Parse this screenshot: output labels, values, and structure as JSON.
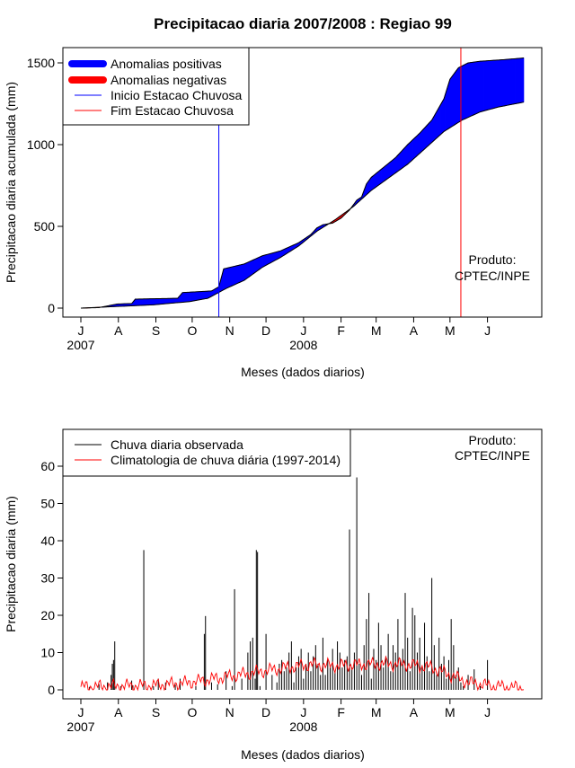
{
  "chart_data": [
    {
      "type": "area",
      "title": "Precipitacao diaria 2007/2008 : Regiao 99",
      "xlabel": "Meses (dados diarios)",
      "ylabel": "Precipitacao diaria acumulada (mm)",
      "ylim": [
        0,
        1550
      ],
      "yticks": [
        0,
        500,
        1000,
        1500
      ],
      "month_ticks": [
        "J",
        "A",
        "S",
        "O",
        "N",
        "D",
        "J",
        "F",
        "M",
        "A",
        "M",
        "J"
      ],
      "year_labels": [
        "2007",
        "2008"
      ],
      "legend": {
        "placement": "top-left",
        "entries": [
          "Anomalias positivas",
          "Anomalias negativas",
          "Inicio Estacao Chuvosa",
          "Fim Estacao Chuvosa"
        ]
      },
      "annotation": [
        "Produto:",
        "CPTEC/INPE"
      ],
      "colors": {
        "positive": "#0000ff",
        "negative": "#ff0000",
        "onset": "#0000ff",
        "end": "#ff0000"
      },
      "onset_day": 114,
      "end_day": 314,
      "observed_knots": [
        [
          0,
          0
        ],
        [
          15,
          3
        ],
        [
          30,
          25
        ],
        [
          42,
          28
        ],
        [
          45,
          55
        ],
        [
          80,
          60
        ],
        [
          84,
          95
        ],
        [
          108,
          105
        ],
        [
          114,
          130
        ],
        [
          118,
          240
        ],
        [
          135,
          270
        ],
        [
          150,
          320
        ],
        [
          165,
          350
        ],
        [
          180,
          400
        ],
        [
          190,
          450
        ],
        [
          195,
          490
        ],
        [
          200,
          510
        ],
        [
          208,
          520
        ],
        [
          215,
          550
        ],
        [
          222,
          600
        ],
        [
          228,
          660
        ],
        [
          232,
          680
        ],
        [
          236,
          760
        ],
        [
          240,
          800
        ],
        [
          250,
          860
        ],
        [
          260,
          920
        ],
        [
          270,
          1000
        ],
        [
          280,
          1070
        ],
        [
          290,
          1150
        ],
        [
          300,
          1280
        ],
        [
          305,
          1400
        ],
        [
          312,
          1470
        ],
        [
          320,
          1500
        ],
        [
          330,
          1510
        ],
        [
          350,
          1520
        ],
        [
          366,
          1530
        ]
      ],
      "climatology_knots": [
        [
          0,
          0
        ],
        [
          30,
          10
        ],
        [
          60,
          20
        ],
        [
          90,
          40
        ],
        [
          105,
          60
        ],
        [
          120,
          120
        ],
        [
          135,
          170
        ],
        [
          150,
          250
        ],
        [
          165,
          310
        ],
        [
          180,
          380
        ],
        [
          195,
          470
        ],
        [
          210,
          540
        ],
        [
          225,
          620
        ],
        [
          240,
          720
        ],
        [
          255,
          800
        ],
        [
          270,
          880
        ],
        [
          285,
          980
        ],
        [
          300,
          1080
        ],
        [
          315,
          1150
        ],
        [
          330,
          1200
        ],
        [
          345,
          1230
        ],
        [
          366,
          1260
        ]
      ]
    },
    {
      "type": "bar",
      "xlabel": "Meses (dados diarios)",
      "ylabel": "Precipitacao diaria (mm)",
      "ylim": [
        0,
        70
      ],
      "yticks": [
        0,
        10,
        20,
        30,
        40,
        50,
        60
      ],
      "month_ticks": [
        "J",
        "A",
        "S",
        "O",
        "N",
        "D",
        "J",
        "F",
        "M",
        "A",
        "M",
        "J"
      ],
      "year_labels": [
        "2007",
        "2008"
      ],
      "legend": {
        "placement": "top-left",
        "entries": [
          "Chuva diaria observada",
          "Climatologia de chuva diária (1997-2014)"
        ]
      },
      "annotation": [
        "Produto:",
        "CPTEC/INPE"
      ],
      "colors": {
        "observed": "#000000",
        "climatology": "#ff0000"
      },
      "observed_peaks": [
        [
          7,
          0.8
        ],
        [
          15,
          1.5
        ],
        [
          22,
          2
        ],
        [
          25,
          4
        ],
        [
          26,
          7
        ],
        [
          27,
          8
        ],
        [
          28,
          13
        ],
        [
          33,
          1
        ],
        [
          42,
          2.5
        ],
        [
          43,
          1.2
        ],
        [
          52,
          37.5
        ],
        [
          60,
          1
        ],
        [
          64,
          3
        ],
        [
          70,
          2
        ],
        [
          78,
          1.5
        ],
        [
          82,
          3
        ],
        [
          95,
          1
        ],
        [
          102,
          15
        ],
        [
          103,
          19.8
        ],
        [
          108,
          2
        ],
        [
          113,
          1.5
        ],
        [
          120,
          5
        ],
        [
          125,
          1
        ],
        [
          127,
          27
        ],
        [
          133,
          3
        ],
        [
          138,
          10
        ],
        [
          140,
          13
        ],
        [
          142,
          14
        ],
        [
          144,
          3
        ],
        [
          145,
          37.5
        ],
        [
          146,
          37
        ],
        [
          148,
          1
        ],
        [
          153,
          15
        ],
        [
          158,
          4
        ],
        [
          162,
          2
        ],
        [
          164,
          7
        ],
        [
          166,
          8
        ],
        [
          168,
          5
        ],
        [
          170,
          6
        ],
        [
          172,
          10
        ],
        [
          174,
          13
        ],
        [
          176,
          2
        ],
        [
          178,
          6
        ],
        [
          180,
          9
        ],
        [
          182,
          11
        ],
        [
          184,
          3
        ],
        [
          186,
          7
        ],
        [
          188,
          10
        ],
        [
          190,
          5
        ],
        [
          192,
          9
        ],
        [
          194,
          12
        ],
        [
          196,
          7
        ],
        [
          198,
          4
        ],
        [
          200,
          14
        ],
        [
          202,
          4
        ],
        [
          204,
          8
        ],
        [
          206,
          6
        ],
        [
          208,
          11
        ],
        [
          210,
          5
        ],
        [
          212,
          13
        ],
        [
          214,
          10
        ],
        [
          216,
          6
        ],
        [
          218,
          8
        ],
        [
          220,
          9
        ],
        [
          222,
          43
        ],
        [
          224,
          6
        ],
        [
          226,
          10
        ],
        [
          228,
          57
        ],
        [
          230,
          7
        ],
        [
          232,
          4
        ],
        [
          234,
          12
        ],
        [
          236,
          19
        ],
        [
          238,
          26
        ],
        [
          240,
          3
        ],
        [
          242,
          11
        ],
        [
          244,
          8
        ],
        [
          246,
          18
        ],
        [
          248,
          12
        ],
        [
          250,
          6
        ],
        [
          252,
          9
        ],
        [
          254,
          15
        ],
        [
          256,
          5
        ],
        [
          258,
          12
        ],
        [
          260,
          10
        ],
        [
          262,
          19
        ],
        [
          264,
          8
        ],
        [
          266,
          11
        ],
        [
          268,
          26
        ],
        [
          270,
          14
        ],
        [
          272,
          5
        ],
        [
          274,
          22
        ],
        [
          276,
          20
        ],
        [
          278,
          10
        ],
        [
          280,
          14
        ],
        [
          282,
          6
        ],
        [
          284,
          18
        ],
        [
          286,
          9
        ],
        [
          288,
          5
        ],
        [
          290,
          30
        ],
        [
          292,
          12
        ],
        [
          294,
          4
        ],
        [
          296,
          14
        ],
        [
          298,
          7
        ],
        [
          300,
          9
        ],
        [
          302,
          3
        ],
        [
          304,
          8
        ],
        [
          306,
          19
        ],
        [
          308,
          12
        ],
        [
          310,
          4
        ],
        [
          312,
          6
        ],
        [
          314,
          2
        ],
        [
          316,
          1
        ],
        [
          320,
          4
        ],
        [
          325,
          5.5
        ],
        [
          330,
          1
        ],
        [
          336,
          8
        ]
      ],
      "climatology_knots": [
        [
          0,
          0.8
        ],
        [
          30,
          1
        ],
        [
          60,
          1.2
        ],
        [
          90,
          2
        ],
        [
          120,
          3.5
        ],
        [
          150,
          5
        ],
        [
          170,
          6
        ],
        [
          190,
          6.8
        ],
        [
          210,
          6.5
        ],
        [
          230,
          6.8
        ],
        [
          250,
          7
        ],
        [
          270,
          6.8
        ],
        [
          290,
          6
        ],
        [
          305,
          4
        ],
        [
          320,
          2
        ],
        [
          340,
          1
        ],
        [
          366,
          0.5
        ]
      ]
    }
  ]
}
